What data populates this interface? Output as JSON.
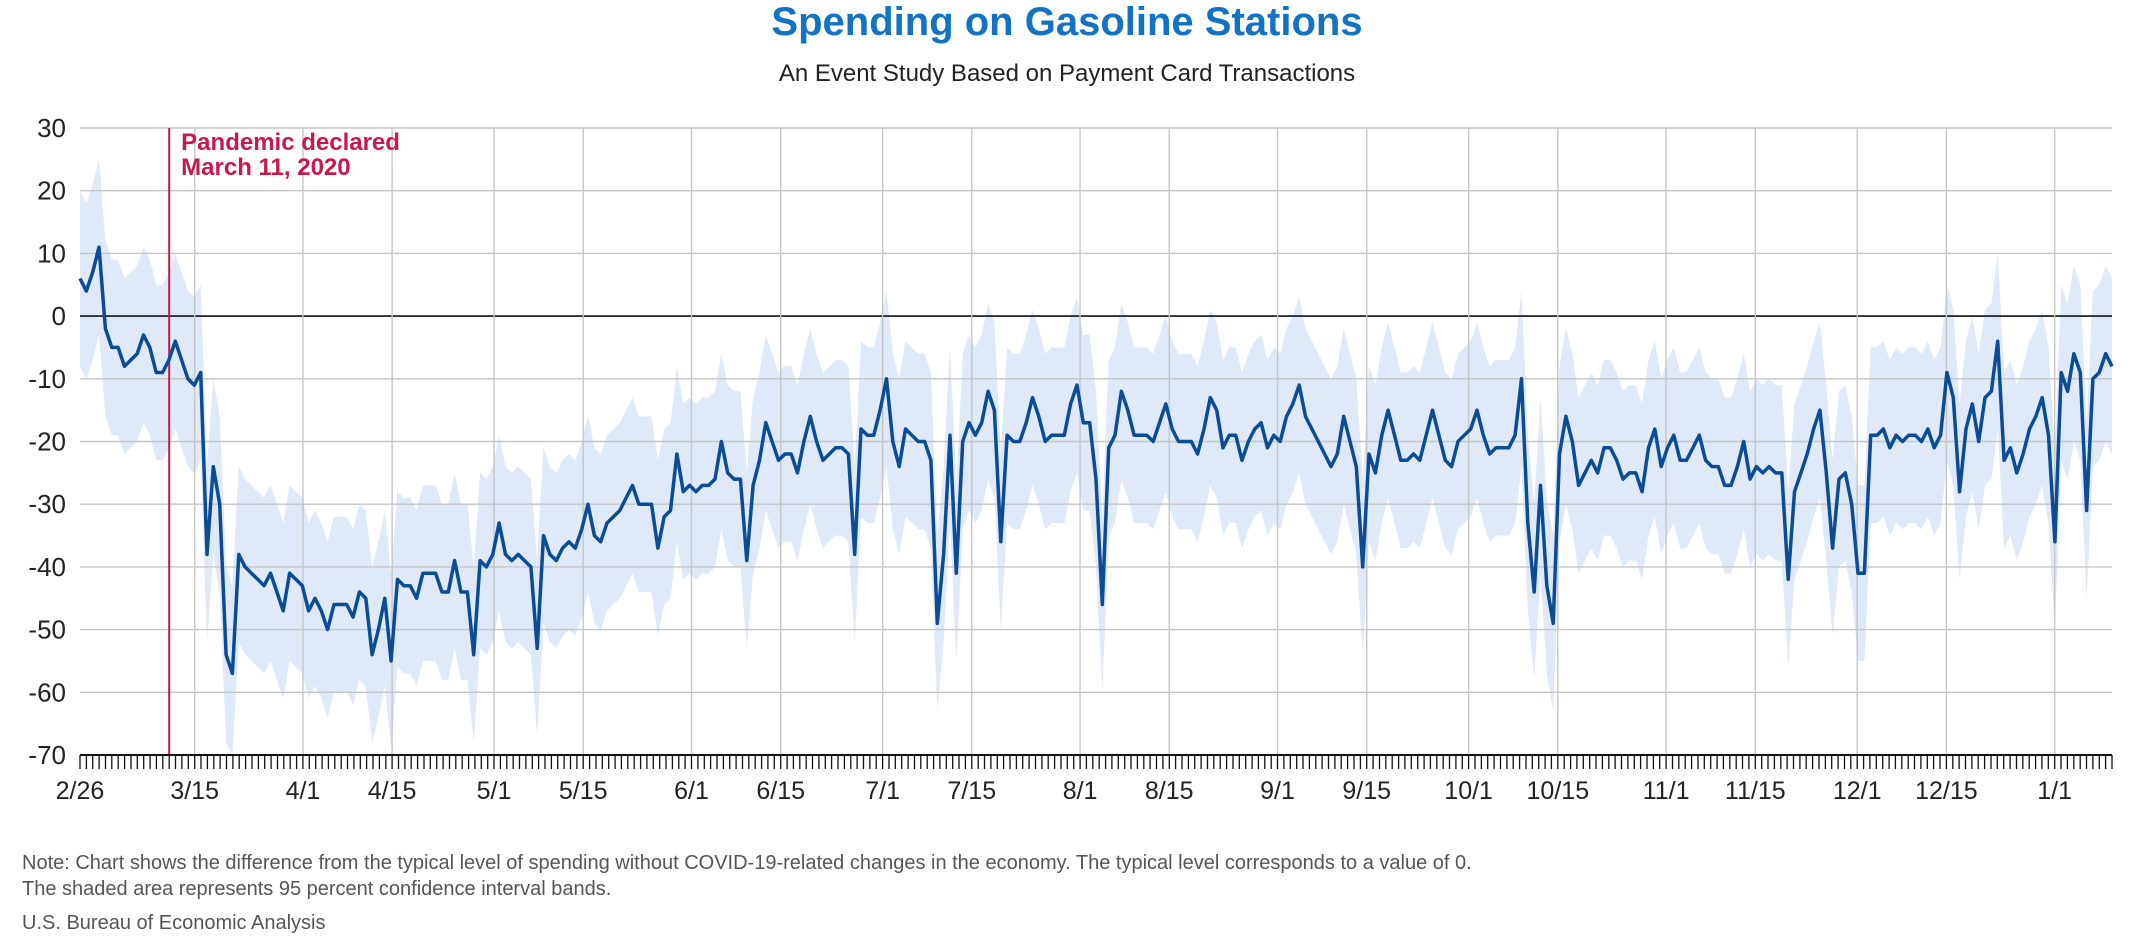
{
  "title": "Spending on Gasoline Stations",
  "subtitle": "An Event Study Based on Payment Card Transactions",
  "note_line1": "Note: Chart shows the difference from the typical level of spending without COVID-19-related changes in the economy. The typical level corresponds to a value of 0.",
  "note_line2": "The shaded area represents 95 percent confidence interval bands.",
  "source": "U.S. Bureau of Economic Analysis",
  "colors": {
    "title": "#1273c4",
    "line": "#0b4c96",
    "band": "#dfe9f7",
    "event": "#c8194b",
    "grid": "#c6c6c6"
  },
  "chart_data": {
    "type": "line",
    "title": "Spending on Gasoline Stations",
    "subtitle": "An Event Study Based on Payment Card Transactions",
    "x_start": "2020-02-26",
    "ylim": [
      -70,
      30
    ],
    "yticks": [
      30,
      20,
      10,
      0,
      -10,
      -20,
      -30,
      -40,
      -50,
      -60,
      -70
    ],
    "grid": true,
    "xtick_labels": [
      {
        "date": "2020-02-26",
        "label": "2/26"
      },
      {
        "date": "2020-03-15",
        "label": "3/15"
      },
      {
        "date": "2020-04-01",
        "label": "4/1"
      },
      {
        "date": "2020-04-15",
        "label": "4/15"
      },
      {
        "date": "2020-05-01",
        "label": "5/1"
      },
      {
        "date": "2020-05-15",
        "label": "5/15"
      },
      {
        "date": "2020-06-01",
        "label": "6/1"
      },
      {
        "date": "2020-06-15",
        "label": "6/15"
      },
      {
        "date": "2020-07-01",
        "label": "7/1"
      },
      {
        "date": "2020-07-15",
        "label": "7/15"
      },
      {
        "date": "2020-08-01",
        "label": "8/1"
      },
      {
        "date": "2020-08-15",
        "label": "8/15"
      },
      {
        "date": "2020-09-01",
        "label": "9/1"
      },
      {
        "date": "2020-09-15",
        "label": "9/15"
      },
      {
        "date": "2020-10-01",
        "label": "10/1"
      },
      {
        "date": "2020-10-15",
        "label": "10/15"
      },
      {
        "date": "2020-11-01",
        "label": "11/1"
      },
      {
        "date": "2020-11-15",
        "label": "11/15"
      },
      {
        "date": "2020-12-01",
        "label": "12/1"
      },
      {
        "date": "2020-12-15",
        "label": "12/15"
      },
      {
        "date": "2021-01-01",
        "label": "1/1"
      }
    ],
    "event": {
      "date": "2020-03-11",
      "label_line1": "Pandemic declared",
      "label_line2": "March 11, 2020"
    },
    "x_end": "2021-01-10",
    "series": [
      {
        "band_halfwidth": 14,
        "values": [
          6,
          4,
          7,
          11,
          -2,
          -5,
          -5,
          -8,
          -7,
          -6,
          -3,
          -5,
          -9,
          -9,
          -7,
          -4,
          -7,
          -10,
          -11,
          -9,
          -38,
          -24,
          -30,
          -54,
          -57,
          -38,
          -40,
          -41,
          -42,
          -43,
          -41,
          -44,
          -47,
          -41,
          -42,
          -43,
          -47,
          -45,
          -47,
          -50,
          -46,
          -46,
          -46,
          -48,
          -44,
          -45,
          -54,
          -50,
          -45,
          -55,
          -42,
          -43,
          -43,
          -45,
          -41,
          -41,
          -41,
          -44,
          -44,
          -39,
          -44,
          -44,
          -54,
          -39,
          -40,
          -38,
          -33,
          -38,
          -39,
          -38,
          -39,
          -40,
          -53,
          -35,
          -38,
          -39,
          -37,
          -36,
          -37,
          -34,
          -30,
          -35,
          -36,
          -33,
          -32,
          -31,
          -29,
          -27,
          -30,
          -30,
          -30,
          -37,
          -32,
          -31,
          -22,
          -28,
          -27,
          -28,
          -27,
          -27,
          -26,
          -20,
          -25,
          -26,
          -26,
          -39,
          -27,
          -23,
          -17,
          -20,
          -23,
          -22,
          -22,
          -25,
          -20,
          -16,
          -20,
          -23,
          -22,
          -21,
          -21,
          -22,
          -38,
          -18,
          -19,
          -19,
          -15,
          -10,
          -20,
          -24,
          -18,
          -19,
          -20,
          -20,
          -23,
          -49,
          -38,
          -19,
          -41,
          -20,
          -17,
          -19,
          -17,
          -12,
          -15,
          -36,
          -19,
          -20,
          -20,
          -17,
          -13,
          -16,
          -20,
          -19,
          -19,
          -19,
          -14,
          -11,
          -17,
          -17,
          -26,
          -46,
          -21,
          -19,
          -12,
          -15,
          -19,
          -19,
          -19,
          -20,
          -17,
          -14,
          -18,
          -20,
          -20,
          -20,
          -22,
          -18,
          -13,
          -15,
          -21,
          -19,
          -19,
          -23,
          -20,
          -18,
          -17,
          -21,
          -19,
          -20,
          -16,
          -14,
          -11,
          -16,
          -18,
          -20,
          -22,
          -24,
          -22,
          -16,
          -20,
          -24,
          -40,
          -22,
          -25,
          -19,
          -15,
          -19,
          -23,
          -23,
          -22,
          -23,
          -19,
          -15,
          -19,
          -23,
          -24,
          -20,
          -19,
          -18,
          -15,
          -19,
          -22,
          -21,
          -21,
          -21,
          -19,
          -10,
          -33,
          -44,
          -27,
          -43,
          -49,
          -22,
          -16,
          -20,
          -27,
          -25,
          -23,
          -25,
          -21,
          -21,
          -23,
          -26,
          -25,
          -25,
          -28,
          -21,
          -18,
          -24,
          -21,
          -19,
          -23,
          -23,
          -21,
          -19,
          -23,
          -24,
          -24,
          -27,
          -27,
          -24,
          -20,
          -26,
          -24,
          -25,
          -24,
          -25,
          -25,
          -42,
          -28,
          -25,
          -22,
          -18,
          -15,
          -25,
          -37,
          -26,
          -25,
          -30,
          -41,
          -41,
          -19,
          -19,
          -18,
          -21,
          -19,
          -20,
          -19,
          -19,
          -20,
          -18,
          -21,
          -19,
          -9,
          -13,
          -28,
          -18,
          -14,
          -20,
          -13,
          -12,
          -4,
          -23,
          -21,
          -25,
          -22,
          -18,
          -16,
          -13,
          -19,
          -36,
          -9,
          -12,
          -6,
          -9,
          -31,
          -10,
          -9,
          -6,
          -8
        ]
      }
    ]
  }
}
